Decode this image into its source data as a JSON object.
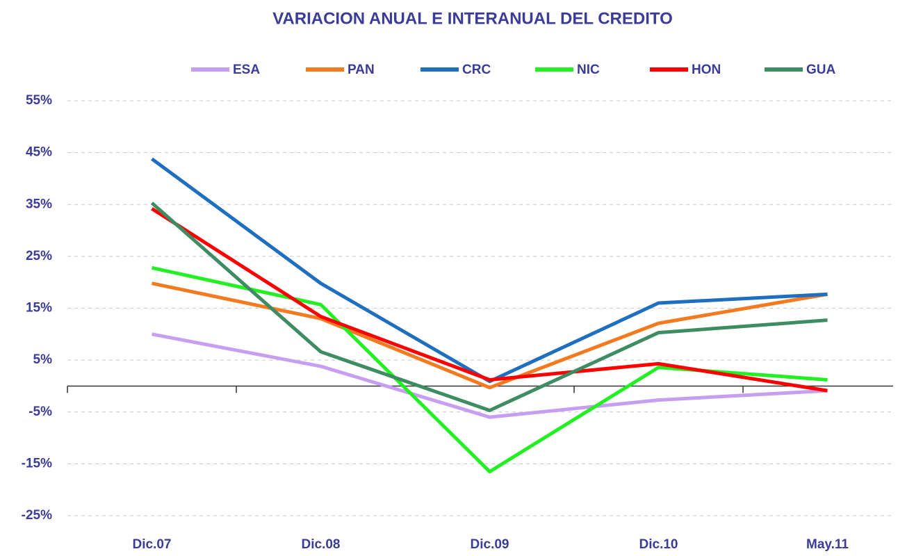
{
  "chart_data": {
    "type": "line",
    "title": "VARIACION ANUAL E INTERANUAL DEL CREDITO",
    "categories": [
      "Dic.07",
      "Dic.08",
      "Dic.09",
      "Dic.10",
      "May.11"
    ],
    "series": [
      {
        "name": "ESA",
        "color": "#c89ef0",
        "values": [
          10.0,
          3.8,
          -6.0,
          -2.7,
          -0.9
        ]
      },
      {
        "name": "PAN",
        "color": "#f47a20",
        "values": [
          19.8,
          13.0,
          -0.3,
          12.1,
          17.7
        ]
      },
      {
        "name": "CRC",
        "color": "#1f6fc0",
        "values": [
          43.8,
          19.8,
          0.9,
          16.0,
          17.7
        ]
      },
      {
        "name": "NIC",
        "color": "#22f022",
        "values": [
          22.8,
          15.7,
          -16.5,
          3.6,
          1.2
        ]
      },
      {
        "name": "HON",
        "color": "#ff0000",
        "values": [
          34.2,
          13.4,
          1.2,
          4.3,
          -0.9
        ]
      },
      {
        "name": "GUA",
        "color": "#3d8c62",
        "values": [
          35.3,
          6.6,
          -4.7,
          10.3,
          12.7
        ]
      }
    ],
    "ylim": [
      -25,
      55
    ],
    "yticks": [
      {
        "value": 55,
        "label": "55%"
      },
      {
        "value": 45,
        "label": "45%"
      },
      {
        "value": 35,
        "label": "35%"
      },
      {
        "value": 25,
        "label": "25%"
      },
      {
        "value": 15,
        "label": "15%"
      },
      {
        "value": 5,
        "label": "5%"
      },
      {
        "value": -5,
        "label": "-5%"
      },
      {
        "value": -15,
        "label": "-15%"
      },
      {
        "value": -25,
        "label": "-25%"
      }
    ],
    "grid": true,
    "legend": "top"
  }
}
